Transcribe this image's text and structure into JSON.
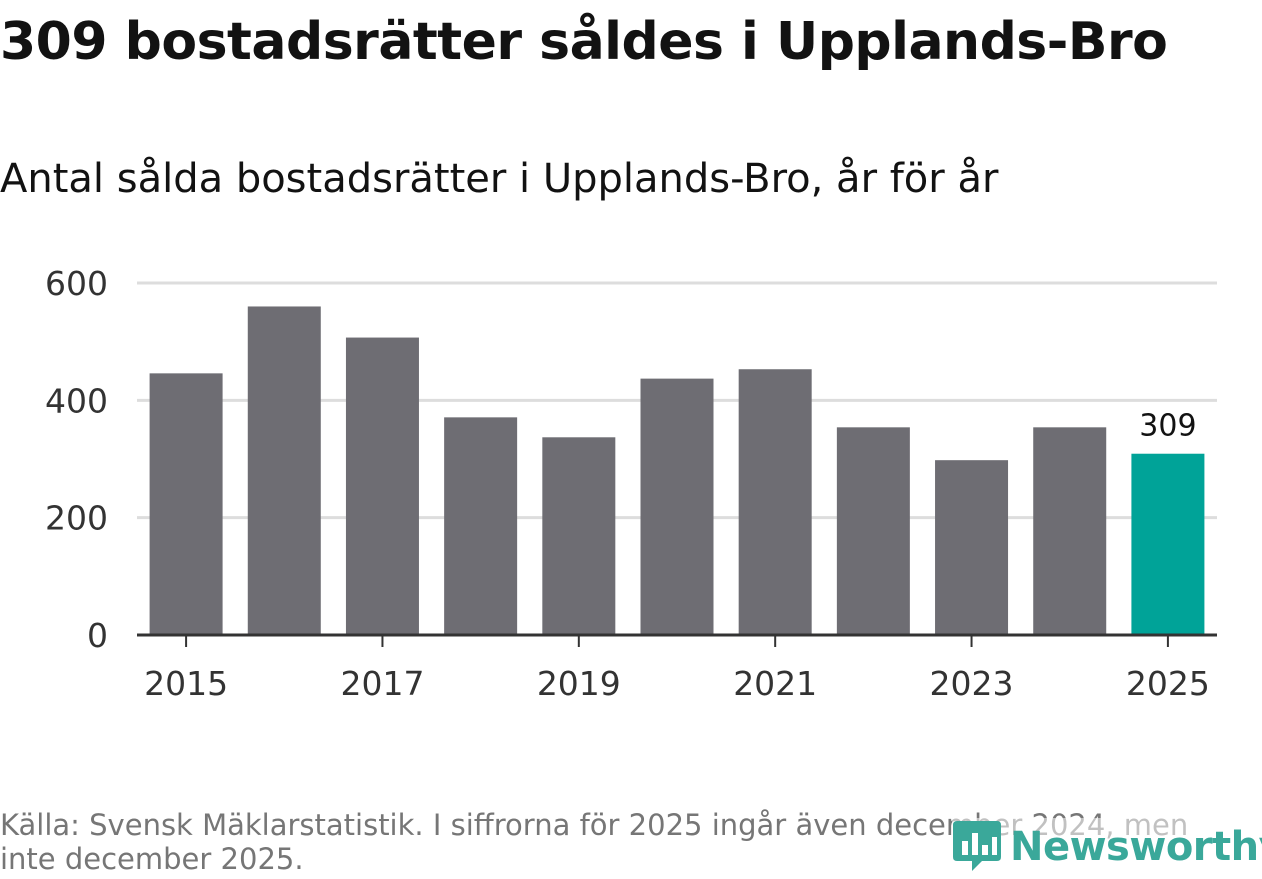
{
  "title": "309 bostadsrätter såldes i Upplands-Bro",
  "subtitle": "Antal sålda bostadsrätter i Upplands-Bro, år för år",
  "source": "Källa: Svensk Mäklarstatistik. I siffrorna för 2025 ingår även december 2024, men inte december 2025.",
  "brand": {
    "name": "Newsworthy",
    "icon": "newsworthy-logo-icon",
    "color": "#3aa89a"
  },
  "colors": {
    "bar": "#6e6d73",
    "highlight": "#00a398",
    "grid": "#dddddd",
    "axis": "#333333"
  },
  "chart_data": {
    "type": "bar",
    "title": "Antal sålda bostadsrätter i Upplands-Bro, år för år",
    "xlabel": "",
    "ylabel": "",
    "categories": [
      "2015",
      "2016",
      "2017",
      "2018",
      "2019",
      "2020",
      "2021",
      "2022",
      "2023",
      "2024",
      "2025"
    ],
    "values": [
      446,
      560,
      507,
      371,
      337,
      437,
      453,
      354,
      298,
      354,
      309
    ],
    "highlight_index": 10,
    "data_labels": [
      {
        "index": 10,
        "text": "309"
      }
    ],
    "ylim": [
      0,
      600
    ],
    "yticks": [
      "0",
      "200",
      "400",
      "600"
    ],
    "xticks": [
      "2015",
      "2017",
      "2019",
      "2021",
      "2023",
      "2025"
    ],
    "grid": true,
    "legend": "none"
  }
}
